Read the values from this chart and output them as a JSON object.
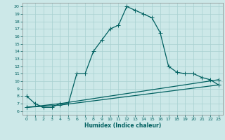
{
  "bg_color": "#cce8e8",
  "grid_color": "#a8d0d0",
  "line_color": "#006060",
  "xlabel": "Humidex (Indice chaleur)",
  "xlim": [
    -0.5,
    23.5
  ],
  "ylim": [
    5.5,
    20.5
  ],
  "yticks": [
    6,
    7,
    8,
    9,
    10,
    11,
    12,
    13,
    14,
    15,
    16,
    17,
    18,
    19,
    20
  ],
  "xticks": [
    0,
    1,
    2,
    3,
    4,
    5,
    6,
    7,
    8,
    9,
    10,
    11,
    12,
    13,
    14,
    15,
    16,
    17,
    18,
    19,
    20,
    21,
    22,
    23
  ],
  "curve1_x": [
    0,
    1,
    2,
    3,
    4,
    5,
    6,
    7,
    8,
    9,
    10,
    11,
    12,
    13,
    14,
    15,
    16,
    17,
    18,
    19,
    20,
    21,
    22,
    23
  ],
  "curve1_y": [
    8.0,
    7.0,
    6.5,
    6.5,
    7.0,
    7.0,
    11.0,
    11.0,
    14.0,
    15.5,
    17.0,
    17.5,
    20.0,
    19.5,
    19.0,
    18.5,
    16.5,
    12.0,
    11.2,
    11.0,
    11.0,
    10.5,
    10.2,
    9.5
  ],
  "curve2_x": [
    0,
    4,
    23
  ],
  "curve2_y": [
    6.5,
    7.0,
    10.2
  ],
  "curve3_x": [
    0,
    4,
    23
  ],
  "curve3_y": [
    6.5,
    6.8,
    9.5
  ],
  "marker": "+",
  "markersize": 4,
  "linewidth": 0.9,
  "tick_fontsize": 4.5,
  "xlabel_fontsize": 5.5,
  "xlabel_fontweight": "bold"
}
